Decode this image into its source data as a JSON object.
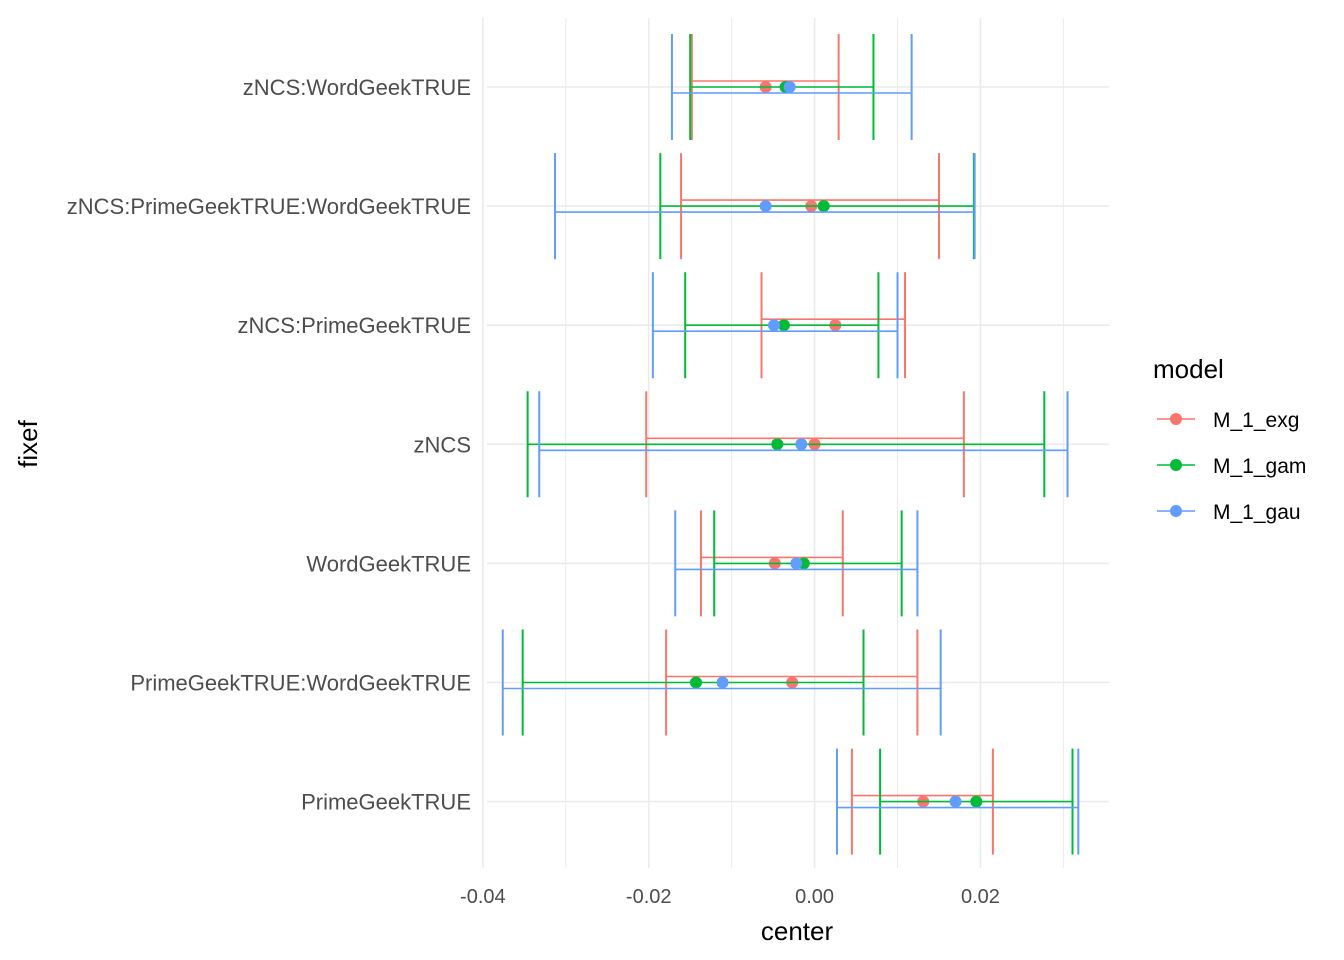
{
  "chart_data": {
    "type": "errorbar-point",
    "xlabel": "center",
    "ylabel": "fixef",
    "xlim": [
      -0.0395,
      0.0355
    ],
    "x_ticks": [
      -0.04,
      -0.02,
      0.0,
      0.02
    ],
    "x_tick_labels": [
      "-0.04",
      "-0.02",
      "0.00",
      "0.02"
    ],
    "grid": true,
    "legend": {
      "title": "model",
      "position": "right"
    },
    "categories": [
      "zNCS:WordGeekTRUE",
      "zNCS:PrimeGeekTRUE:WordGeekTRUE",
      "zNCS:PrimeGeekTRUE",
      "zNCS",
      "WordGeekTRUE",
      "PrimeGeekTRUE:WordGeekTRUE",
      "PrimeGeekTRUE"
    ],
    "series": [
      {
        "name": "M_1_exg",
        "color": "#F8766D",
        "points": [
          {
            "fixef": "zNCS:WordGeekTRUE",
            "center": -0.0059,
            "lower": -0.0148,
            "upper": 0.0029,
            "outer_lower": -0.0148,
            "outer_upper": 0.0029
          },
          {
            "fixef": "zNCS:PrimeGeekTRUE:WordGeekTRUE",
            "center": -0.0004,
            "lower": -0.0161,
            "upper": 0.015
          },
          {
            "fixef": "zNCS:PrimeGeekTRUE",
            "center": 0.0025,
            "lower": -0.0064,
            "upper": 0.0109
          },
          {
            "fixef": "zNCS",
            "center": 0.0,
            "lower": -0.0203,
            "upper": 0.018
          },
          {
            "fixef": "WordGeekTRUE",
            "center": -0.0048,
            "lower": -0.0137,
            "upper": 0.0034
          },
          {
            "fixef": "PrimeGeekTRUE:WordGeekTRUE",
            "center": -0.0027,
            "lower": -0.0179,
            "upper": 0.0124
          },
          {
            "fixef": "PrimeGeekTRUE",
            "center": 0.0131,
            "lower": 0.0045,
            "upper": 0.0215
          }
        ]
      },
      {
        "name": "M_1_gam",
        "color": "#00BA38",
        "points": [
          {
            "fixef": "zNCS:WordGeekTRUE",
            "center": -0.0035,
            "lower": -0.015,
            "upper": 0.0071
          },
          {
            "fixef": "zNCS:PrimeGeekTRUE:WordGeekTRUE",
            "center": 0.0011,
            "lower": -0.0186,
            "upper": 0.0192
          },
          {
            "fixef": "zNCS:PrimeGeekTRUE",
            "center": -0.0037,
            "lower": -0.0156,
            "upper": 0.0077
          },
          {
            "fixef": "zNCS",
            "center": -0.0045,
            "lower": -0.0346,
            "upper": 0.0277
          },
          {
            "fixef": "WordGeekTRUE",
            "center": -0.0013,
            "lower": -0.0121,
            "upper": 0.0105
          },
          {
            "fixef": "PrimeGeekTRUE:WordGeekTRUE",
            "center": -0.0143,
            "lower": -0.0352,
            "upper": 0.0059
          },
          {
            "fixef": "PrimeGeekTRUE",
            "center": 0.0195,
            "lower": 0.0079,
            "upper": 0.0311
          }
        ]
      },
      {
        "name": "M_1_gau",
        "color": "#619CFF",
        "points": [
          {
            "fixef": "zNCS:WordGeekTRUE",
            "center": -0.003,
            "lower": -0.0172,
            "upper": 0.0117
          },
          {
            "fixef": "zNCS:PrimeGeekTRUE:WordGeekTRUE",
            "center": -0.0059,
            "lower": -0.0313,
            "upper": 0.0193
          },
          {
            "fixef": "zNCS:PrimeGeekTRUE",
            "center": -0.0049,
            "lower": -0.0195,
            "upper": 0.01
          },
          {
            "fixef": "zNCS",
            "center": -0.0016,
            "lower": -0.0332,
            "upper": 0.0305
          },
          {
            "fixef": "WordGeekTRUE",
            "center": -0.0022,
            "lower": -0.0168,
            "upper": 0.0124
          },
          {
            "fixef": "PrimeGeekTRUE:WordGeekTRUE",
            "center": -0.0111,
            "lower": -0.0376,
            "upper": 0.0152
          },
          {
            "fixef": "PrimeGeekTRUE",
            "center": 0.017,
            "lower": 0.0027,
            "upper": 0.0318
          }
        ]
      }
    ]
  }
}
